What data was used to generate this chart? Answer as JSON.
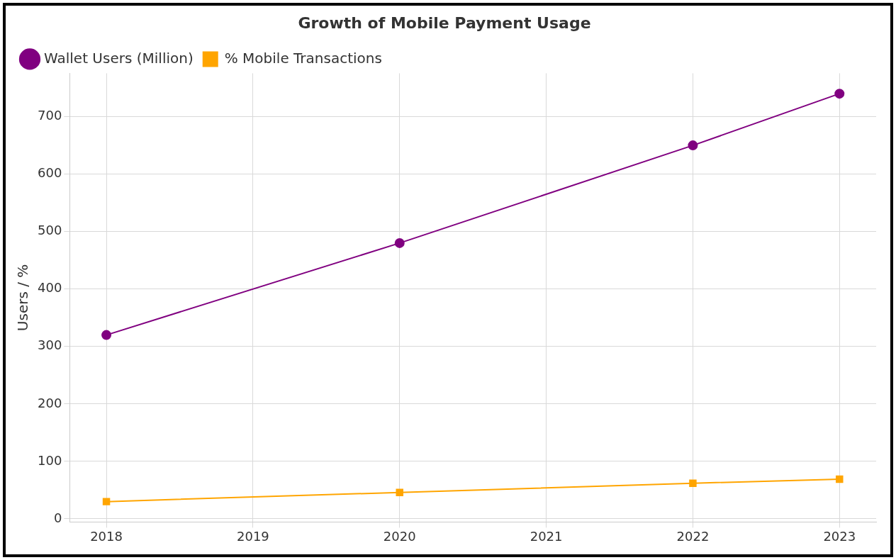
{
  "chart_data": {
    "type": "line",
    "title": "Growth of Mobile Payment Usage",
    "ylabel": "Users / %",
    "x": [
      2018,
      2020,
      2022,
      2023
    ],
    "series": [
      {
        "name": "Wallet Users (Million)",
        "color": "#800080",
        "marker": "circle",
        "values": [
          320,
          480,
          650,
          740
        ]
      },
      {
        "name": "% Mobile Transactions",
        "color": "#ffa500",
        "marker": "square",
        "values": [
          30,
          46,
          62,
          69
        ]
      }
    ],
    "xlim": [
      2017.75,
      2023.25
    ],
    "xticks": [
      2018,
      2019,
      2020,
      2021,
      2022,
      2023
    ],
    "ylim": [
      -5.5,
      775.5
    ],
    "yticks": [
      0,
      100,
      200,
      300,
      400,
      500,
      600,
      700
    ],
    "grid": true,
    "legend": "top left",
    "line_style": "solid"
  }
}
